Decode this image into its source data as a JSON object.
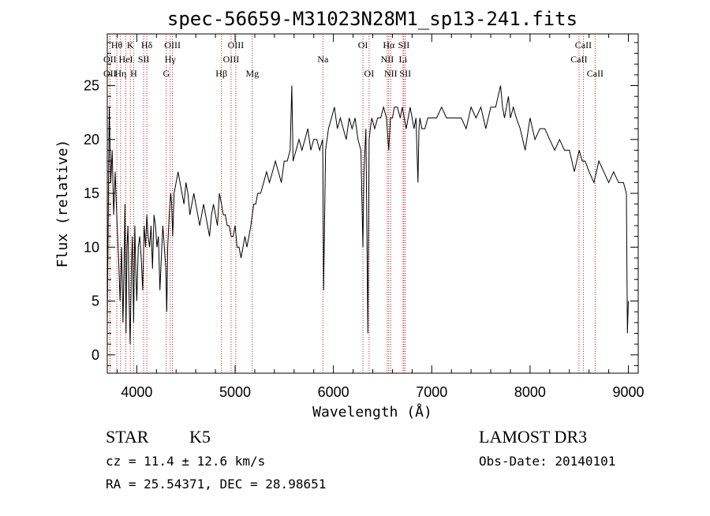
{
  "chart_data": {
    "type": "line",
    "title": "spec-56659-M31023N28M1_sp13-241.fits",
    "xlabel": "Wavelength (Å)",
    "ylabel": "Flux (relative)",
    "xlim": [
      3700,
      9100
    ],
    "ylim": [
      -1.7,
      29.8
    ],
    "xticks": [
      {
        "value": 4000,
        "label": "4000"
      },
      {
        "value": 5000,
        "label": "5000"
      },
      {
        "value": 6000,
        "label": "6000"
      },
      {
        "value": 7000,
        "label": "7000"
      },
      {
        "value": 8000,
        "label": "8000"
      },
      {
        "value": 9000,
        "label": "9000"
      }
    ],
    "yticks": [
      {
        "value": 0,
        "label": "0"
      },
      {
        "value": 5,
        "label": "5"
      },
      {
        "value": 10,
        "label": "10"
      },
      {
        "value": 15,
        "label": "15"
      },
      {
        "value": 20,
        "label": "20"
      },
      {
        "value": 25,
        "label": "25"
      }
    ],
    "spectrum": {
      "x": [
        3700,
        3720,
        3735,
        3750,
        3765,
        3780,
        3800,
        3815,
        3830,
        3845,
        3860,
        3870,
        3880,
        3890,
        3900,
        3910,
        3920,
        3933,
        3945,
        3955,
        3968,
        3980,
        3990,
        4000,
        4015,
        4030,
        4045,
        4060,
        4075,
        4090,
        4102,
        4115,
        4130,
        4145,
        4160,
        4175,
        4190,
        4205,
        4220,
        4235,
        4250,
        4265,
        4280,
        4295,
        4305,
        4315,
        4330,
        4345,
        4355,
        4365,
        4380,
        4400,
        4420,
        4440,
        4460,
        4480,
        4500,
        4520,
        4540,
        4560,
        4580,
        4600,
        4620,
        4640,
        4660,
        4680,
        4700,
        4720,
        4740,
        4760,
        4780,
        4800,
        4820,
        4840,
        4861,
        4880,
        4900,
        4920,
        4940,
        4960,
        4980,
        5000,
        5020,
        5040,
        5060,
        5080,
        5100,
        5120,
        5140,
        5160,
        5175,
        5190,
        5210,
        5230,
        5260,
        5290,
        5320,
        5350,
        5380,
        5410,
        5440,
        5470,
        5500,
        5530,
        5560,
        5577,
        5590,
        5620,
        5650,
        5680,
        5710,
        5740,
        5770,
        5800,
        5830,
        5860,
        5890,
        5893,
        5900,
        5920,
        5950,
        5980,
        6010,
        6040,
        6070,
        6100,
        6130,
        6160,
        6190,
        6220,
        6250,
        6280,
        6300,
        6310,
        6330,
        6350,
        6363,
        6375,
        6390,
        6420,
        6450,
        6480,
        6510,
        6540,
        6563,
        6580,
        6600,
        6620,
        6650,
        6680,
        6700,
        6720,
        6740,
        6760,
        6780,
        6800,
        6820,
        6840,
        6860,
        6870,
        6880,
        6900,
        6930,
        6960,
        7000,
        7050,
        7100,
        7150,
        7200,
        7250,
        7300,
        7350,
        7400,
        7450,
        7500,
        7550,
        7600,
        7650,
        7700,
        7720,
        7740,
        7760,
        7780,
        7800,
        7830,
        7860,
        7900,
        7950,
        8000,
        8050,
        8100,
        8150,
        8200,
        8250,
        8300,
        8350,
        8400,
        8450,
        8500,
        8530,
        8560,
        8600,
        8650,
        8700,
        8750,
        8800,
        8850,
        8900,
        8950,
        8980,
        8990,
        9000
      ],
      "y": [
        3,
        23,
        16,
        19,
        13,
        17,
        12,
        9,
        5,
        10,
        3,
        8,
        14,
        2,
        10,
        12,
        6,
        1,
        8,
        11,
        3,
        12,
        8,
        5,
        10,
        11,
        9,
        6,
        12,
        10,
        13,
        11,
        10,
        12,
        8,
        13,
        12,
        10,
        11,
        6,
        9,
        12,
        10,
        8,
        4,
        10,
        13,
        15,
        14,
        11,
        15,
        16,
        17,
        16,
        15,
        14,
        16,
        15,
        13,
        14,
        15,
        14,
        13,
        12,
        13,
        14,
        13,
        12,
        11,
        13,
        14,
        13,
        12,
        15,
        14,
        13,
        13,
        12,
        12,
        11,
        11,
        12,
        10,
        10,
        9,
        10,
        11,
        10,
        11,
        12,
        13,
        14,
        14,
        15,
        15,
        16,
        17,
        16,
        17,
        18,
        17,
        16,
        18,
        18,
        19,
        25,
        18,
        19,
        20,
        19,
        20,
        21,
        19,
        20,
        20,
        19,
        20,
        18,
        6,
        19,
        21,
        22,
        23,
        21,
        22,
        21,
        20,
        22,
        21,
        22,
        20,
        19,
        10,
        17,
        21,
        2,
        20,
        21,
        22,
        21,
        22,
        22,
        23,
        22,
        19,
        22,
        22,
        23,
        23,
        22,
        23,
        22,
        21,
        22,
        23,
        22,
        21,
        22,
        16,
        21,
        22,
        21,
        21,
        22,
        22,
        22,
        23,
        22,
        22,
        22,
        22,
        21,
        23,
        22,
        23,
        21,
        23,
        23,
        25,
        23,
        22,
        23,
        24,
        22,
        23,
        22,
        21,
        19,
        22,
        20,
        21,
        21,
        20,
        19,
        20,
        19,
        19,
        17,
        19,
        18,
        18,
        17,
        16,
        18,
        17,
        16,
        17,
        16,
        16,
        15,
        2,
        5
      ]
    },
    "lines": [
      {
        "label": "OII",
        "wave": 3727,
        "pos": "top",
        "row": 2
      },
      {
        "label": "Hθ",
        "wave": 3797,
        "pos": "top",
        "row": 0
      },
      {
        "label": "OII",
        "wave": 3727,
        "pos": "top",
        "row": 1
      },
      {
        "label": "Hη",
        "wave": 3835,
        "pos": "top",
        "row": 2
      },
      {
        "label": "HeI",
        "wave": 3889,
        "pos": "top",
        "row": 1
      },
      {
        "label": "K",
        "wave": 3934,
        "pos": "top",
        "row": 0
      },
      {
        "label": "H",
        "wave": 3968,
        "pos": "top",
        "row": 2
      },
      {
        "label": "SII",
        "wave": 4070,
        "pos": "top",
        "row": 1
      },
      {
        "label": "Hδ",
        "wave": 4102,
        "pos": "top",
        "row": 0
      },
      {
        "label": "G",
        "wave": 4300,
        "pos": "top",
        "row": 2
      },
      {
        "label": "Hγ",
        "wave": 4340,
        "pos": "top",
        "row": 1
      },
      {
        "label": "OIII",
        "wave": 4363,
        "pos": "top",
        "row": 0
      },
      {
        "label": "Hβ",
        "wave": 4861,
        "pos": "top",
        "row": 2
      },
      {
        "label": "OIII",
        "wave": 4959,
        "pos": "top",
        "row": 1
      },
      {
        "label": "OIII",
        "wave": 5007,
        "pos": "top",
        "row": 0
      },
      {
        "label": "Mg",
        "wave": 5175,
        "pos": "top",
        "row": 2
      },
      {
        "label": "Na",
        "wave": 5893,
        "pos": "top",
        "row": 1
      },
      {
        "label": "OI",
        "wave": 6300,
        "pos": "top",
        "row": 0
      },
      {
        "label": "OI",
        "wave": 6363,
        "pos": "top",
        "row": 2
      },
      {
        "label": "NII",
        "wave": 6548,
        "pos": "top",
        "row": 1
      },
      {
        "label": "Hα",
        "wave": 6563,
        "pos": "top",
        "row": 0
      },
      {
        "label": "NII",
        "wave": 6583,
        "pos": "top",
        "row": 2
      },
      {
        "label": "SII",
        "wave": 6716,
        "pos": "top",
        "row": 0
      },
      {
        "label": "Li",
        "wave": 6708,
        "pos": "top",
        "row": 1
      },
      {
        "label": "SII",
        "wave": 6731,
        "pos": "top",
        "row": 2
      },
      {
        "label": "CaII",
        "wave": 8498,
        "pos": "top",
        "row": 1
      },
      {
        "label": "CaII",
        "wave": 8542,
        "pos": "top",
        "row": 0
      },
      {
        "label": "CaII",
        "wave": 8662,
        "pos": "top",
        "row": 2
      }
    ]
  },
  "info": {
    "class_label": "STAR",
    "subclass": "K5",
    "cz": "cz = 11.4 ± 12.6 km/s",
    "radec": "RA =  25.54371, DEC =  28.98651",
    "survey": "LAMOST DR3",
    "obs_date": "Obs-Date: 20140101"
  },
  "colors": {
    "spectrum": "#000000",
    "line_markers": "#b22222",
    "axes": "#000000",
    "background": "#ffffff"
  }
}
